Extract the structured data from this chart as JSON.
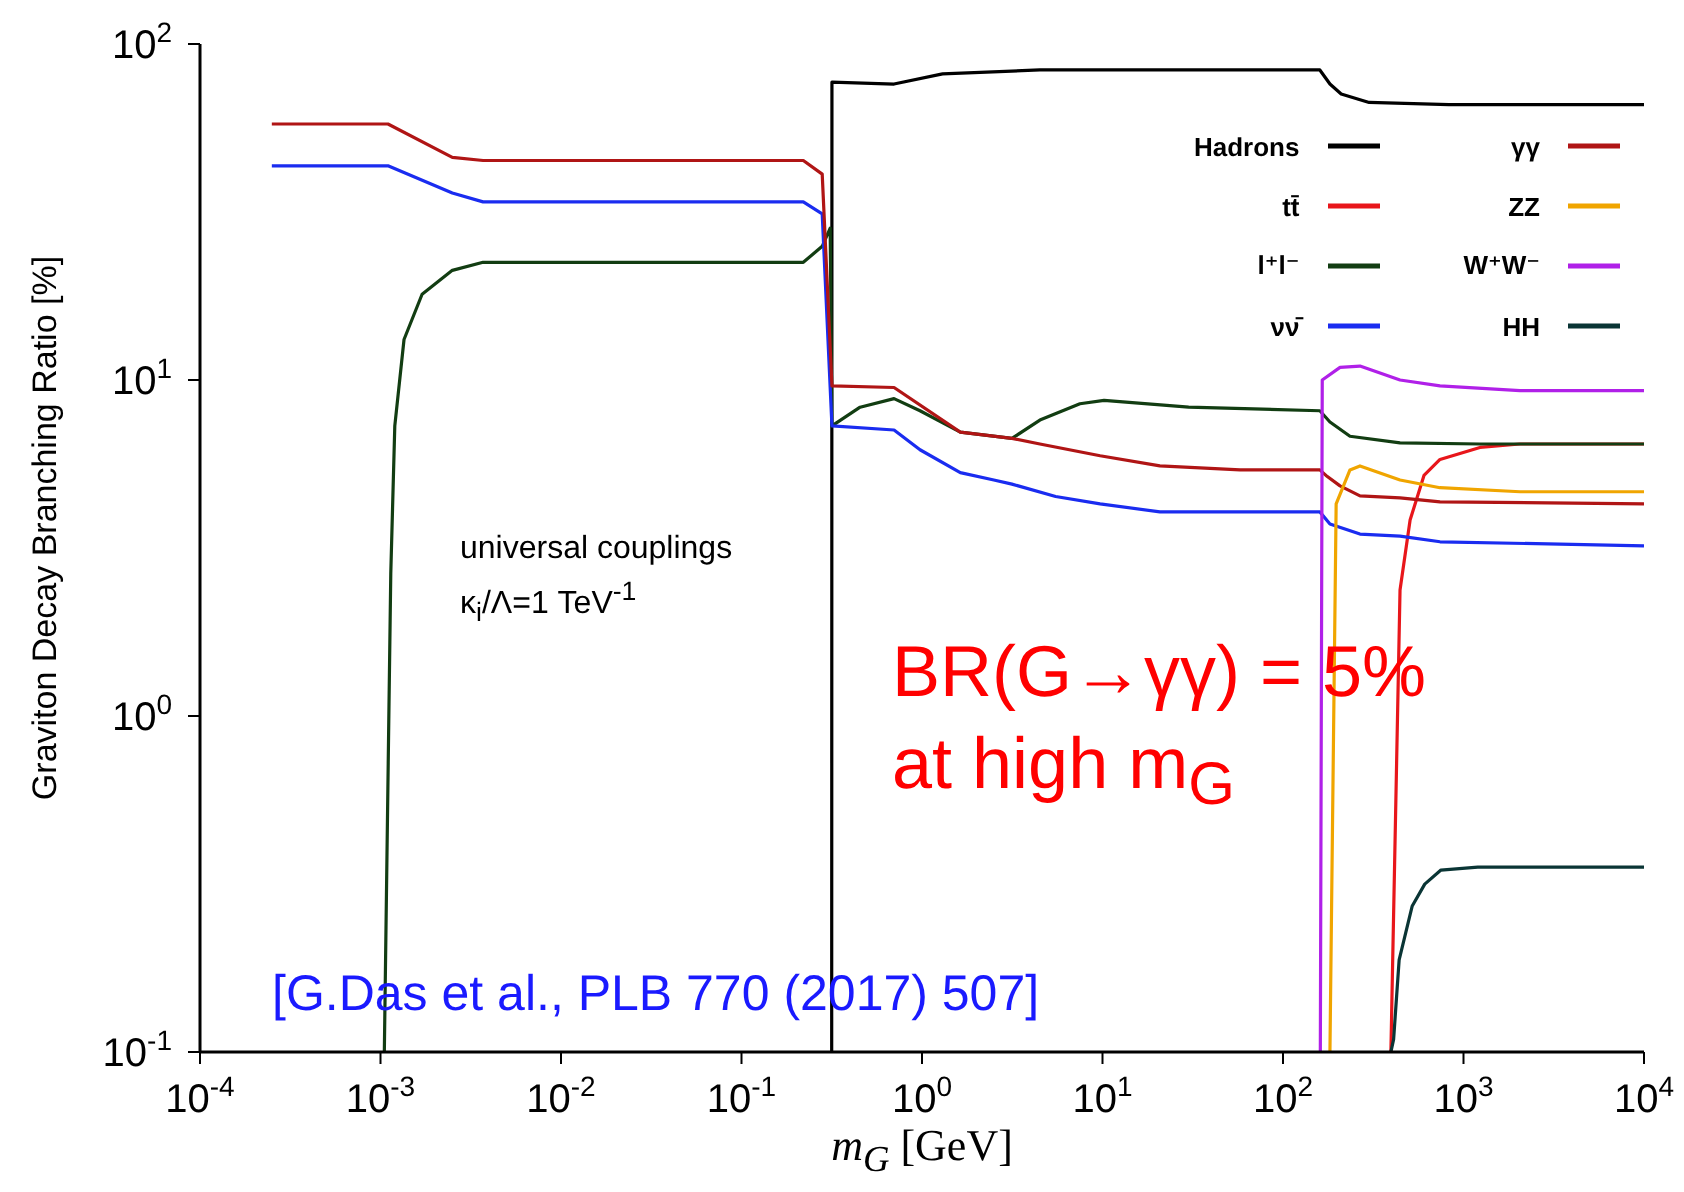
{
  "chart_data": {
    "type": "line",
    "xlabel": "m$_{G}$  [GeV]",
    "ylabel": "Graviton Decay Branching Ratio [%]",
    "log": "xy",
    "grid": false,
    "legend": "top right",
    "marker": "none",
    "line_style": "solid",
    "xlim": [
      0.0001,
      10000
    ],
    "ylim": [
      0.1,
      100
    ],
    "xticks": [
      {
        "value": 0.0001,
        "label": "10$^{-4}$"
      },
      {
        "value": 0.001,
        "label": "10$^{-3}$"
      },
      {
        "value": 0.01,
        "label": "10$^{-2}$"
      },
      {
        "value": 0.1,
        "label": "10$^{-1}$"
      },
      {
        "value": 1,
        "label": "10$^{0}$"
      },
      {
        "value": 10,
        "label": "10$^{1}$"
      },
      {
        "value": 100,
        "label": "10$^{2}$"
      },
      {
        "value": 1000,
        "label": "10$^{3}$"
      },
      {
        "value": 10000,
        "label": "10$^{4}$"
      }
    ],
    "yticks": [
      {
        "value": 0.1,
        "label": "10$^{-1}$"
      },
      {
        "value": 1,
        "label": "10$^{0}$"
      },
      {
        "value": 10,
        "label": "10$^{1}$"
      },
      {
        "value": 100,
        "label": "10$^{2}$"
      }
    ],
    "series": [
      {
        "name": "Hadrons",
        "color": "#000000",
        "x": [
          0.316,
          0.317,
          0.7,
          1.3,
          4.5,
          50,
          160,
          182,
          210,
          300,
          830,
          10000
        ],
        "values": [
          0.1,
          77,
          76,
          81.5,
          83.7,
          83.7,
          83.7,
          76,
          71,
          67,
          66,
          66
        ]
      },
      {
        "name": "tt̄",
        "color": "#e8161b",
        "x": [
          396,
          445,
          506,
          604,
          741,
          1233,
          2056,
          10000
        ],
        "values": [
          0.1,
          2.37,
          3.83,
          5.2,
          5.8,
          6.3,
          6.45,
          6.45
        ]
      },
      {
        "name": "l⁺l⁻",
        "color": "#123d12",
        "x": [
          0.00105,
          0.00114,
          0.0012,
          0.00135,
          0.0017,
          0.0025,
          0.0037,
          0.22,
          0.28,
          0.31,
          0.317,
          0.454,
          0.7,
          0.975,
          1.63,
          3.15,
          4.5,
          7.5,
          10.2,
          30,
          160,
          182,
          235,
          445,
          1233,
          10000
        ],
        "values": [
          0.1,
          2.65,
          7.3,
          13.2,
          18,
          21.2,
          22.4,
          22.4,
          25,
          28.3,
          7.3,
          8.3,
          8.8,
          8.1,
          7.0,
          6.7,
          7.6,
          8.5,
          8.7,
          8.3,
          8.1,
          7.5,
          6.8,
          6.5,
          6.45,
          6.45
        ]
      },
      {
        "name": "νν̄",
        "color": "#1a2cf0",
        "x": [
          0.00025,
          0.0011,
          0.0025,
          0.0037,
          0.22,
          0.28,
          0.317,
          0.7,
          0.975,
          1.63,
          2.5,
          3.15,
          5.5,
          9.7,
          20.8,
          160,
          182,
          267,
          445,
          741,
          10000
        ],
        "values": [
          43.4,
          43.4,
          36,
          33.9,
          33.9,
          31.2,
          7.3,
          7.1,
          6.2,
          5.3,
          5.04,
          4.9,
          4.5,
          4.28,
          4.05,
          4.05,
          3.73,
          3.48,
          3.43,
          3.3,
          3.21
        ]
      },
      {
        "name": "γγ",
        "color": "#b01515",
        "x": [
          0.00025,
          0.0011,
          0.0025,
          0.0037,
          0.22,
          0.28,
          0.317,
          0.7,
          1.63,
          3.15,
          4.5,
          9.7,
          20.8,
          57.8,
          160,
          173,
          207,
          267,
          445,
          741,
          10000
        ],
        "values": [
          57.8,
          57.8,
          46,
          45,
          45,
          41,
          9.6,
          9.5,
          7.0,
          6.7,
          6.45,
          5.95,
          5.55,
          5.4,
          5.4,
          5.2,
          4.84,
          4.52,
          4.46,
          4.34,
          4.28
        ]
      },
      {
        "name": "ZZ",
        "color": "#f0a500",
        "x": [
          182,
          197,
          235,
          267,
          445,
          741,
          2056,
          10000
        ],
        "values": [
          0.1,
          4.28,
          5.4,
          5.55,
          5.04,
          4.78,
          4.65,
          4.65
        ]
      },
      {
        "name": "W⁺W⁻",
        "color": "#b020e8",
        "x": [
          161,
          165,
          207,
          267,
          445,
          741,
          2056,
          10000
        ],
        "values": [
          0.1,
          10,
          10.9,
          11,
          10,
          9.6,
          9.3,
          9.3
        ]
      },
      {
        "name": "HH",
        "color": "#0a3535",
        "x": [
          396,
          410,
          440,
          520,
          610,
          750,
          1200,
          10000
        ],
        "values": [
          0.1,
          0.109,
          0.188,
          0.272,
          0.316,
          0.348,
          0.355,
          0.355
        ]
      }
    ],
    "annotations": [
      "universal couplings",
      "κ$_{i}$/Λ=1 TeV$^{-1}$",
      "BR(G→γγ) = 5%",
      "at high m$_{G}$",
      "[G.Das et al., PLB 770 (2017) 507]"
    ]
  }
}
